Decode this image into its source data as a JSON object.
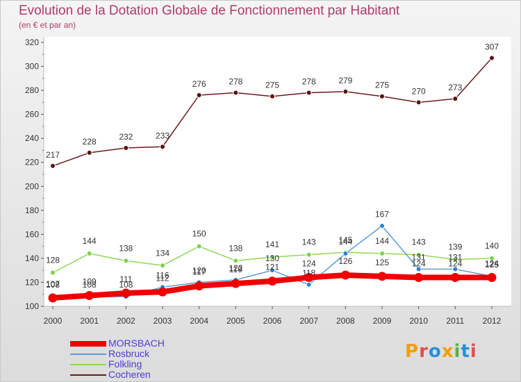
{
  "title": "Evolution de la Dotation Globale de Fonctionnement par Habitant",
  "subtitle": "(en € et par an)",
  "chart_data": {
    "type": "line",
    "title": "Evolution de la Dotation Globale de Fonctionnement par Habitant",
    "subtitle": "(en € et par an)",
    "xlabel": "",
    "ylabel": "",
    "categories": [
      "2000",
      "2001",
      "2002",
      "2003",
      "2004",
      "2005",
      "2006",
      "2007",
      "2008",
      "2009",
      "2010",
      "2011",
      "2012"
    ],
    "ylim": [
      100,
      320
    ],
    "yticks": [
      100,
      120,
      140,
      160,
      180,
      200,
      220,
      240,
      260,
      280,
      300,
      320
    ],
    "grid": false,
    "legend_position": "bottom-left",
    "series": [
      {
        "name": "MORSBACH",
        "color": "#ee0000",
        "values": [
          107,
          109,
          111,
          112,
          117,
          119,
          121,
          124,
          126,
          125,
          124,
          124,
          124
        ]
      },
      {
        "name": "Rosbruck",
        "color": "#5b9bd5",
        "values": [
          108,
          108,
          108,
          116,
          120,
          122,
          130,
          118,
          144,
          167,
          131,
          131,
          125
        ]
      },
      {
        "name": "Folkling",
        "color": "#8ed85a",
        "values": [
          128,
          144,
          138,
          134,
          150,
          138,
          141,
          143,
          145,
          144,
          143,
          139,
          140
        ]
      },
      {
        "name": "Cocheren",
        "color": "#6a1a1a",
        "values": [
          217,
          228,
          232,
          233,
          276,
          278,
          275,
          278,
          279,
          275,
          270,
          273,
          307
        ]
      }
    ]
  },
  "logo": {
    "letters": [
      "P",
      "r",
      "o",
      "x",
      "i",
      "t",
      "i"
    ],
    "colors": [
      "#f0a000",
      "#e05050",
      "#2a8fd8",
      "#f0a000",
      "#5ab04a",
      "#2a8fd8",
      "#e05050"
    ]
  }
}
